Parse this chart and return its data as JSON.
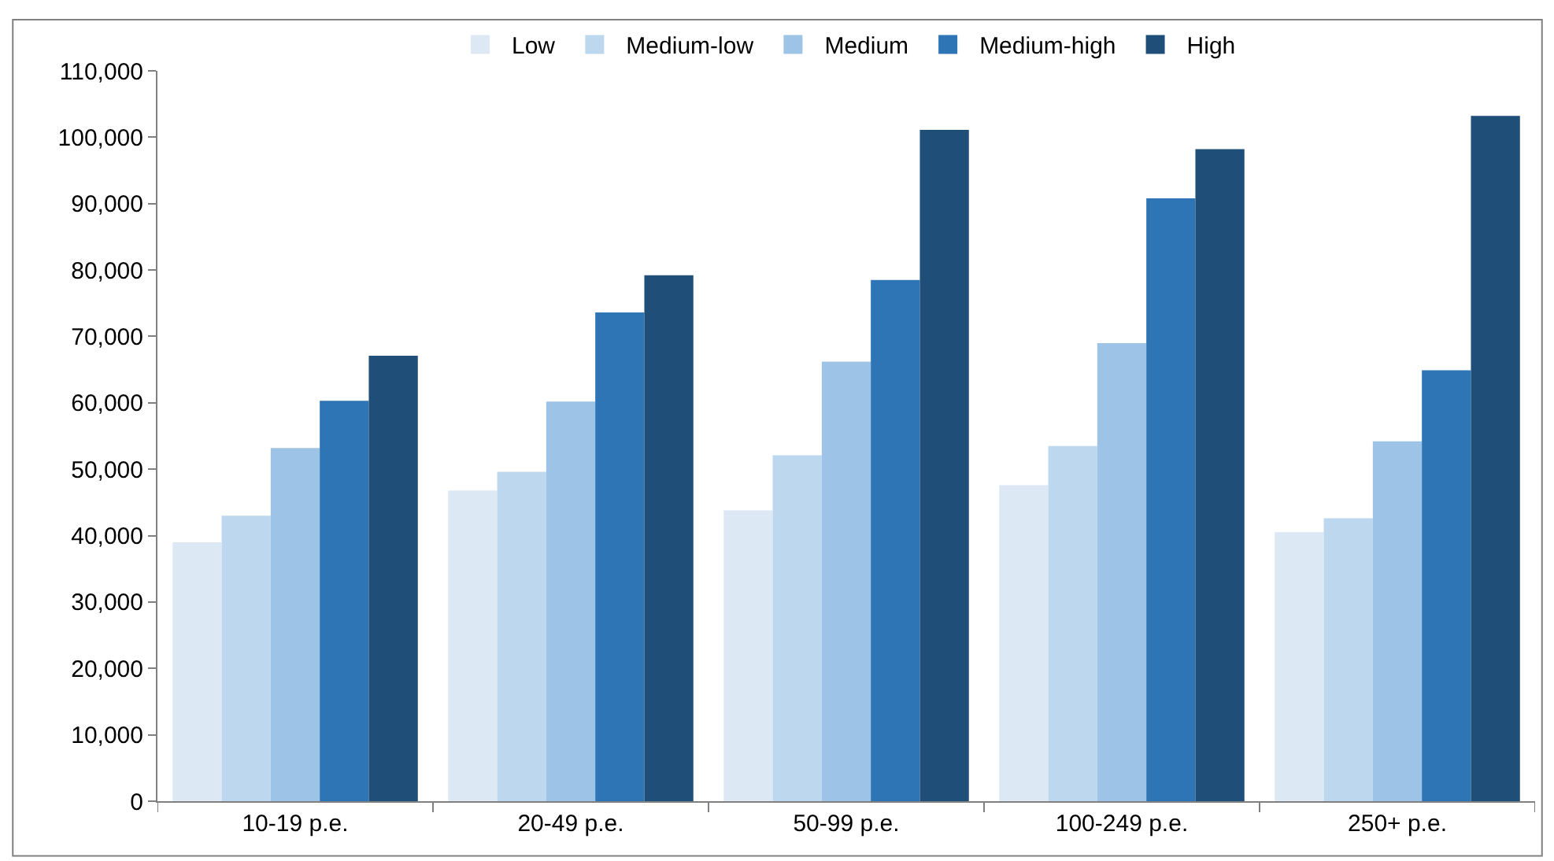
{
  "chart_data": {
    "type": "bar",
    "categories": [
      "10-19 p.e.",
      "20-49 p.e.",
      "50-99 p.e.",
      "100-249 p.e.",
      "250+ p.e."
    ],
    "series": [
      {
        "name": "Low",
        "color": "#dde8f5",
        "values": [
          39000,
          46800,
          43800,
          47600,
          40500
        ]
      },
      {
        "name": "Medium-low",
        "color": "#bdd7ee",
        "values": [
          43000,
          49600,
          52100,
          53500,
          42600
        ]
      },
      {
        "name": "Medium",
        "color": "#9dc3e6",
        "values": [
          53200,
          60200,
          66200,
          69000,
          54200
        ]
      },
      {
        "name": "Medium-high",
        "color": "#2e75b6",
        "values": [
          60300,
          73600,
          78500,
          90800,
          64900
        ]
      },
      {
        "name": "High",
        "color": "#1f4e79",
        "values": [
          67100,
          79200,
          101100,
          98200,
          103200
        ]
      }
    ],
    "ylim": [
      0,
      110000
    ],
    "yticks": [
      {
        "value": 0,
        "label": "0"
      },
      {
        "value": 10000,
        "label": "10,000"
      },
      {
        "value": 20000,
        "label": "20,000"
      },
      {
        "value": 30000,
        "label": "30,000"
      },
      {
        "value": 40000,
        "label": "40,000"
      },
      {
        "value": 50000,
        "label": "50,000"
      },
      {
        "value": 60000,
        "label": "60,000"
      },
      {
        "value": 70000,
        "label": "70,000"
      },
      {
        "value": 80000,
        "label": "80,000"
      },
      {
        "value": 90000,
        "label": "90,000"
      },
      {
        "value": 100000,
        "label": "100,000"
      },
      {
        "value": 110000,
        "label": "110,000"
      }
    ],
    "legend": "top"
  }
}
